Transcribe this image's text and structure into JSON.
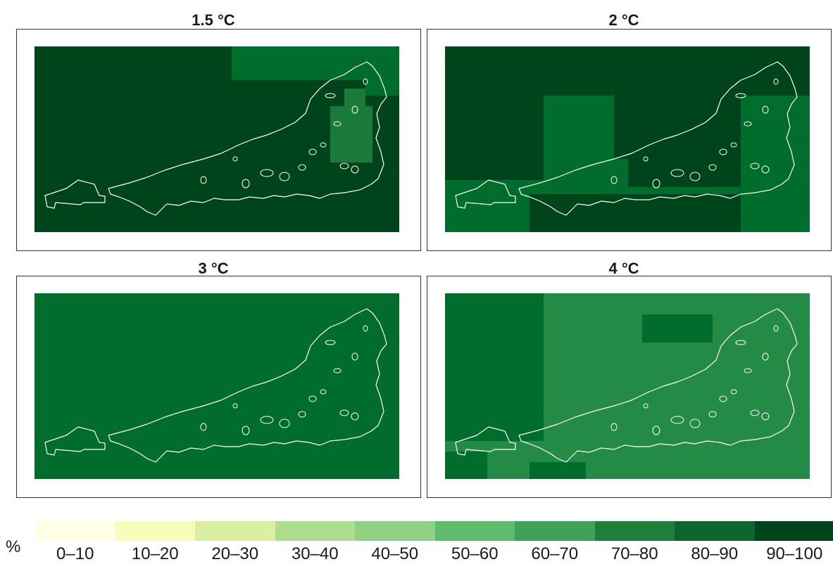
{
  "panels": [
    {
      "title": "1.5 °C",
      "base": "#00441b",
      "blocks": [
        [
          "w_top",
          "#006d2c"
        ],
        [
          "east_mid",
          "#1a7a3a"
        ],
        [
          "east_low",
          "#006d2c"
        ]
      ]
    },
    {
      "title": "2 °C",
      "base": "#006d2c",
      "blocks": [
        [
          "west_band",
          "#00441b"
        ],
        [
          "top_band",
          "#00441b"
        ],
        [
          "center_band",
          "#00441b"
        ],
        [
          "bottom_band",
          "#00441b"
        ]
      ]
    },
    {
      "title": "3 °C",
      "base": "#006d2c",
      "blocks": []
    },
    {
      "title": "4 °C",
      "base": "#238b45",
      "blocks": [
        [
          "west_band",
          "#006d2c"
        ],
        [
          "center_strip",
          "#006d2c"
        ],
        [
          "bottom_west",
          "#006d2c"
        ]
      ]
    }
  ],
  "legend": {
    "unit": "%",
    "classes": [
      {
        "label": "0–10",
        "color": "#ffffe5"
      },
      {
        "label": "10–20",
        "color": "#f7fcb9"
      },
      {
        "label": "20–30",
        "color": "#d9f0a3"
      },
      {
        "label": "30–40",
        "color": "#addd8e"
      },
      {
        "label": "40–50",
        "color": "#8fd283"
      },
      {
        "label": "50–60",
        "color": "#5ebc6e"
      },
      {
        "label": "60–70",
        "color": "#3ea356"
      },
      {
        "label": "70–80",
        "color": "#1f7e3e"
      },
      {
        "label": "80–90",
        "color": "#0b6630"
      },
      {
        "label": "90–100",
        "color": "#00441b"
      }
    ]
  }
}
